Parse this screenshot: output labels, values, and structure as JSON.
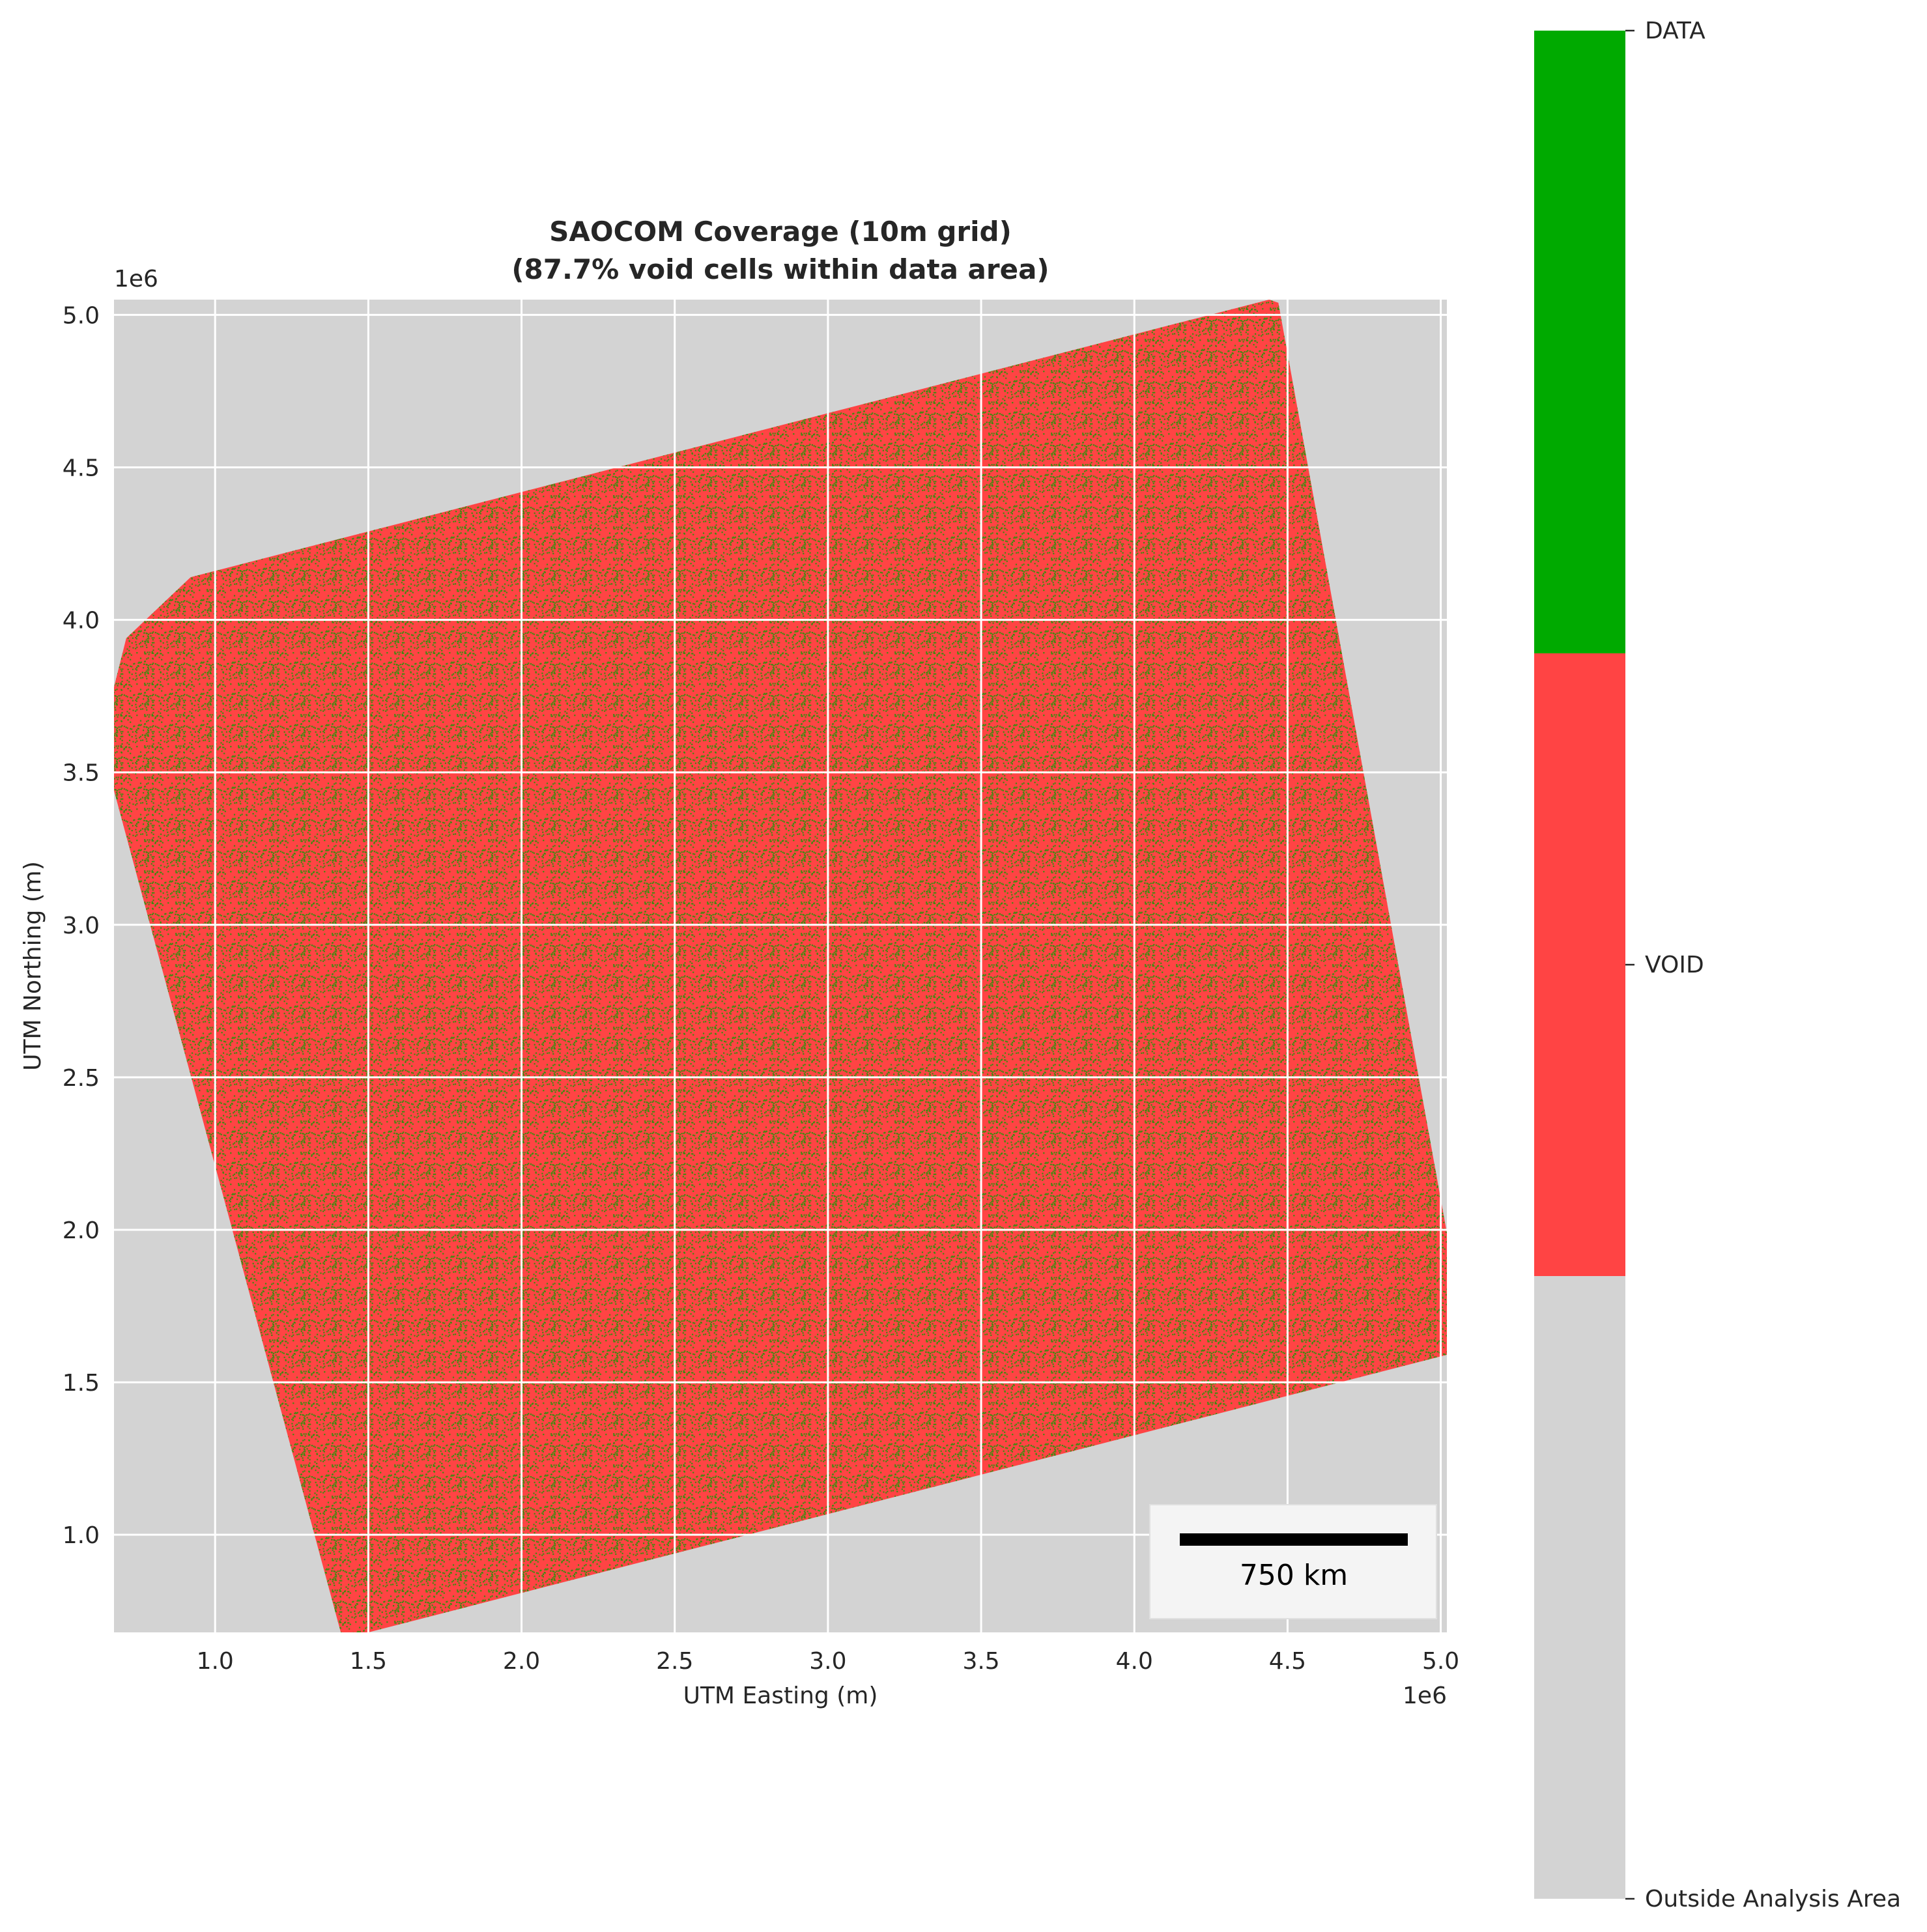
{
  "chart_data": {
    "type": "heatmap",
    "title": "SAOCOM Coverage (10m grid)",
    "subtitle": "(87.7% void cells within data area)",
    "xlabel": "UTM Easting (m)",
    "ylabel": "UTM Northing (m)",
    "x_offset_label": "1e6",
    "y_offset_label": "1e6",
    "xlim": [
      0.67,
      5.02
    ],
    "ylim": [
      0.68,
      5.05
    ],
    "x_ticks": [
      1.0,
      1.5,
      2.0,
      2.5,
      3.0,
      3.5,
      4.0,
      4.5,
      5.0
    ],
    "x_tick_labels": [
      "1.0",
      "1.5",
      "2.0",
      "2.5",
      "3.0",
      "3.5",
      "4.0",
      "4.5",
      "5.0"
    ],
    "y_ticks": [
      1.0,
      1.5,
      2.0,
      2.5,
      3.0,
      3.5,
      4.0,
      4.5,
      5.0
    ],
    "y_tick_labels": [
      "1.0",
      "1.5",
      "2.0",
      "2.5",
      "3.0",
      "3.5",
      "4.0",
      "4.5",
      "5.0"
    ],
    "grid": true,
    "data_polygon": [
      [
        0.92,
        4.14
      ],
      [
        0.71,
        3.94
      ],
      [
        0.67,
        3.78
      ],
      [
        0.67,
        3.44
      ],
      [
        1.41,
        0.68
      ],
      [
        1.5,
        0.68
      ],
      [
        5.02,
        1.59
      ],
      [
        5.02,
        1.99
      ],
      [
        4.47,
        5.04
      ],
      [
        4.44,
        5.05
      ]
    ],
    "void_percent": 87.7,
    "categories": [
      "Outside Analysis Area",
      "VOID",
      "DATA"
    ],
    "category_colors": [
      "#d3d3d3",
      "#ff4444",
      "#00aa00"
    ],
    "colorbar_labels": [
      "DATA",
      "VOID",
      "Outside Analysis Area"
    ],
    "scale_bar_label": "750 km",
    "colors": {
      "outside": "#d3d3d3",
      "void": "#ff4444",
      "data": "#00aa00",
      "data_speckle": "#3f8a10",
      "grid": "#ffffff"
    }
  }
}
